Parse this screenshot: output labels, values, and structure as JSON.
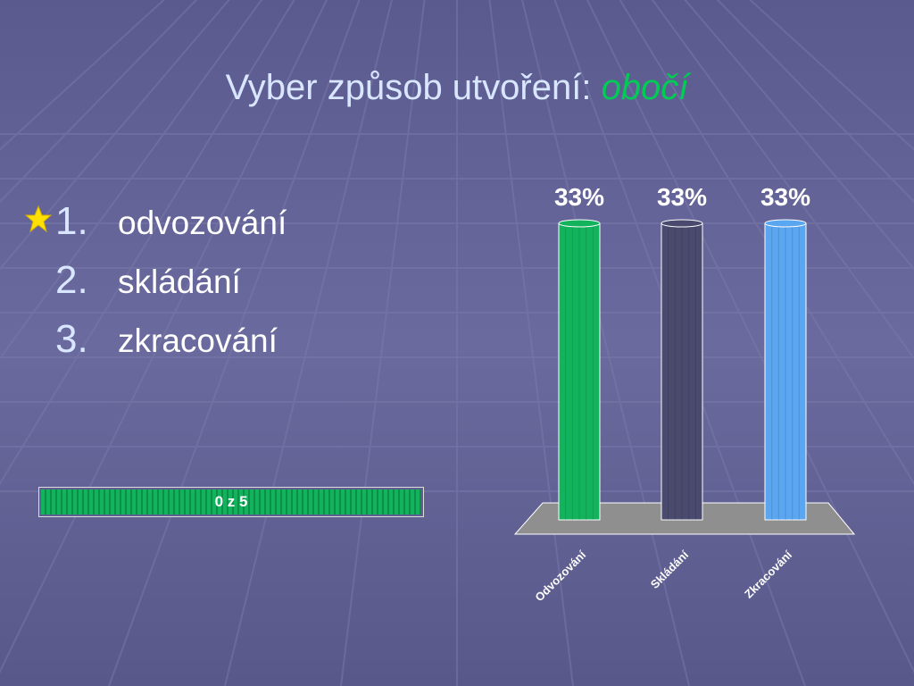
{
  "slide": {
    "title_prefix": "Vyber způsob utvoření: ",
    "title_accent": "obočí",
    "options": [
      {
        "num": "1.",
        "label": "odvozování"
      },
      {
        "num": "2.",
        "label": "skládání"
      },
      {
        "num": "3.",
        "label": "zkracování"
      }
    ],
    "counter": "0 z 5",
    "colors": {
      "accent": "#00cc55",
      "background": "#5f5f92",
      "title": "#d9e6ff"
    }
  },
  "chart_data": {
    "type": "bar",
    "categories": [
      "Odvozování",
      "Skládání",
      "Zkracování"
    ],
    "values": [
      33,
      33,
      33
    ],
    "data_labels": [
      "33%",
      "33%",
      "33%"
    ],
    "colors": [
      "#12b35c",
      "#4a4a6e",
      "#5aa6f0"
    ],
    "ylim": [
      0,
      33
    ],
    "title": "",
    "xlabel": "",
    "ylabel": "",
    "grid": false
  }
}
